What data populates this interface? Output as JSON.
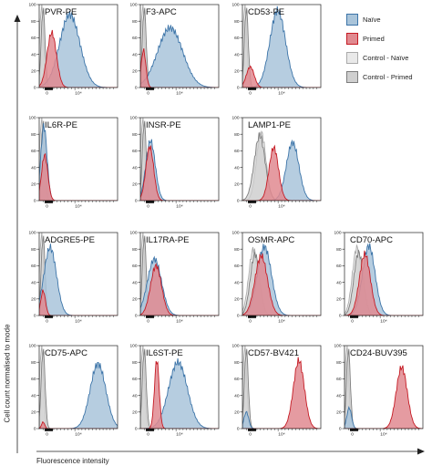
{
  "axes": {
    "ylabel": "Cell count normalised to mode",
    "xlabel": "Fluorescence intensity"
  },
  "legend": [
    {
      "label": "Naïve",
      "fill": "#a9c4da",
      "stroke": "#3c74a8"
    },
    {
      "label": "Primed",
      "fill": "#e08a90",
      "stroke": "#c51b24"
    },
    {
      "label": "Control - Naïve",
      "fill": "#e9e9e9",
      "stroke": "#aaaaaa"
    },
    {
      "label": "Control - Primed",
      "fill": "#cfcfcf",
      "stroke": "#7d7d7d"
    }
  ],
  "chart_data": {
    "type": "area",
    "y_tick_labels": [
      "0",
      "20",
      "40",
      "60",
      "80",
      "100"
    ],
    "x_tick_labels": [
      "0",
      "10⁴"
    ],
    "series_order": [
      "Control - Naïve",
      "Control - Primed",
      "Naïve",
      "Primed"
    ],
    "panels": [
      {
        "title": "PVR-PE",
        "peaks": [
          [
            0.03,
            0.025,
            100
          ],
          [
            0.05,
            0.025,
            95
          ],
          [
            0.39,
            0.13,
            88
          ],
          [
            0.16,
            0.06,
            66
          ]
        ]
      },
      {
        "title": "F3-APC",
        "peaks": [
          [
            0.03,
            0.025,
            100
          ],
          [
            0.05,
            0.025,
            95
          ],
          [
            0.38,
            0.16,
            72
          ],
          [
            0.04,
            0.03,
            45
          ]
        ]
      },
      {
        "title": "CD53-PE",
        "peaks": [
          [
            0.03,
            0.025,
            100
          ],
          [
            0.05,
            0.025,
            95
          ],
          [
            0.45,
            0.1,
            93
          ],
          [
            0.1,
            0.05,
            25
          ]
        ]
      },
      {
        "title": "IL6R-PE",
        "peaks": [
          [
            0.03,
            0.025,
            100
          ],
          [
            0.05,
            0.025,
            95
          ],
          [
            0.06,
            0.04,
            90
          ],
          [
            0.07,
            0.04,
            55
          ]
        ]
      },
      {
        "title": "INSR-PE",
        "peaks": [
          [
            0.03,
            0.025,
            100
          ],
          [
            0.05,
            0.025,
            95
          ],
          [
            0.13,
            0.06,
            72
          ],
          [
            0.12,
            0.05,
            65
          ]
        ]
      },
      {
        "title": "LAMP1-PE",
        "peaks": [
          [
            0.24,
            0.06,
            82
          ],
          [
            0.22,
            0.07,
            78
          ],
          [
            0.64,
            0.08,
            70
          ],
          [
            0.4,
            0.06,
            64
          ]
        ]
      },
      {
        "title": "ADGRE5-PE",
        "peaks": [
          [
            0.03,
            0.025,
            100
          ],
          [
            0.05,
            0.025,
            95
          ],
          [
            0.14,
            0.08,
            82
          ],
          [
            0.05,
            0.03,
            30
          ]
        ]
      },
      {
        "title": "IL17RA-PE",
        "peaks": [
          [
            0.03,
            0.025,
            100
          ],
          [
            0.05,
            0.025,
            95
          ],
          [
            0.18,
            0.09,
            68
          ],
          [
            0.2,
            0.07,
            60
          ]
        ]
      },
      {
        "title": "OSMR-APC",
        "peaks": [
          [
            0.14,
            0.06,
            80
          ],
          [
            0.16,
            0.06,
            74
          ],
          [
            0.28,
            0.09,
            83
          ],
          [
            0.24,
            0.08,
            72
          ]
        ]
      },
      {
        "title": "CD70-APC",
        "peaks": [
          [
            0.16,
            0.06,
            82
          ],
          [
            0.18,
            0.06,
            76
          ],
          [
            0.31,
            0.08,
            84
          ],
          [
            0.26,
            0.07,
            74
          ]
        ]
      },
      {
        "title": "CD75-APC",
        "peaks": [
          [
            0.03,
            0.025,
            100
          ],
          [
            0.05,
            0.025,
            95
          ],
          [
            0.75,
            0.1,
            78
          ],
          [
            0.05,
            0.02,
            8
          ]
        ]
      },
      {
        "title": "IL6ST-PE",
        "peaks": [
          [
            0.03,
            0.025,
            100
          ],
          [
            0.05,
            0.025,
            95
          ],
          [
            0.48,
            0.12,
            80
          ],
          [
            0.21,
            0.03,
            83
          ]
        ]
      },
      {
        "title": "CD57-BV421",
        "peaks": [
          [
            0.03,
            0.025,
            100
          ],
          [
            0.05,
            0.025,
            95
          ],
          [
            0.05,
            0.03,
            20
          ],
          [
            0.72,
            0.07,
            82
          ]
        ]
      },
      {
        "title": "CD24-BUV395",
        "peaks": [
          [
            0.03,
            0.025,
            100
          ],
          [
            0.05,
            0.025,
            95
          ],
          [
            0.06,
            0.03,
            25
          ],
          [
            0.73,
            0.07,
            74
          ]
        ]
      }
    ]
  }
}
